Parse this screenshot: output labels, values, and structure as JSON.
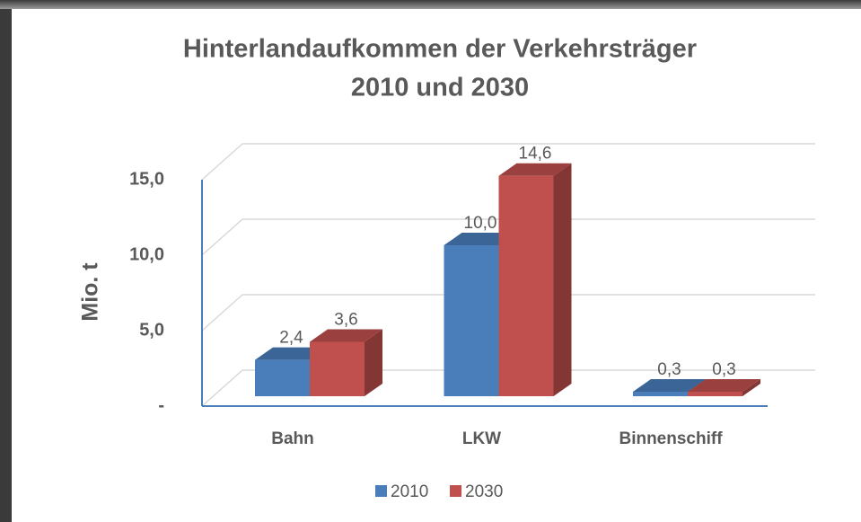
{
  "chart_data": {
    "type": "bar3d",
    "title": [
      "Hinterlandaufkommen der Verkehrsträger",
      "2010 und 2030"
    ],
    "ylabel": "Mio. t",
    "categories": [
      "Bahn",
      "LKW",
      "Binnenschiff"
    ],
    "series": [
      {
        "name": "2010",
        "color": "#4a7ebb",
        "values": [
          2.4,
          10.0,
          0.3
        ],
        "value_labels": [
          "2,4",
          "10,0",
          "0,3"
        ]
      },
      {
        "name": "2030",
        "color": "#c0504d",
        "values": [
          3.6,
          14.6,
          0.3
        ],
        "value_labels": [
          "3,6",
          "14,6",
          "0,3"
        ]
      }
    ],
    "ylim": [
      0,
      15
    ],
    "yticks": [
      {
        "value": 0,
        "label": "-"
      },
      {
        "value": 5,
        "label": "5,0"
      },
      {
        "value": 10,
        "label": "10,0"
      },
      {
        "value": 15,
        "label": "15,0"
      }
    ],
    "grid": true,
    "legend": "bottom"
  }
}
